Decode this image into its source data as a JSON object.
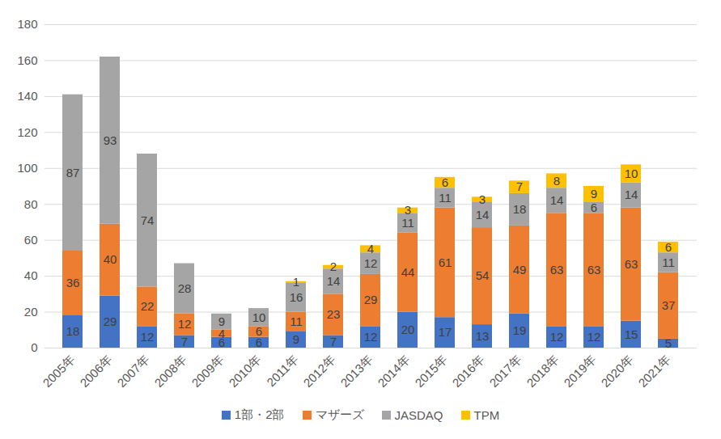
{
  "chart_data": {
    "type": "bar",
    "stacked": true,
    "data_labels": true,
    "grid": true,
    "legend": "bottom",
    "categories": [
      "2005年",
      "2006年",
      "2007年",
      "2008年",
      "2009年",
      "2010年",
      "2011年",
      "2012年",
      "2013年",
      "2014年",
      "2015年",
      "2016年",
      "2017年",
      "2018年",
      "2019年",
      "2020年",
      "2021年"
    ],
    "series": [
      {
        "name": "1部・2部",
        "color": "#4472c4",
        "values": [
          18,
          29,
          12,
          7,
          6,
          6,
          9,
          7,
          12,
          20,
          17,
          13,
          19,
          12,
          12,
          15,
          5
        ]
      },
      {
        "name": "マザーズ",
        "color": "#ed7d31",
        "values": [
          36,
          40,
          22,
          12,
          4,
          6,
          11,
          23,
          29,
          44,
          61,
          54,
          49,
          63,
          63,
          63,
          37
        ]
      },
      {
        "name": "JASDAQ",
        "color": "#a5a5a5",
        "values": [
          87,
          93,
          74,
          28,
          9,
          10,
          16,
          14,
          12,
          11,
          11,
          14,
          18,
          14,
          6,
          14,
          11
        ]
      },
      {
        "name": "TPM",
        "color": "#ffc000",
        "values": [
          null,
          null,
          null,
          null,
          null,
          null,
          1,
          2,
          4,
          3,
          6,
          3,
          7,
          8,
          9,
          10,
          6
        ]
      }
    ],
    "ylim": [
      0,
      180
    ],
    "yticks": [
      0,
      20,
      40,
      60,
      80,
      100,
      120,
      140,
      160,
      180
    ]
  }
}
